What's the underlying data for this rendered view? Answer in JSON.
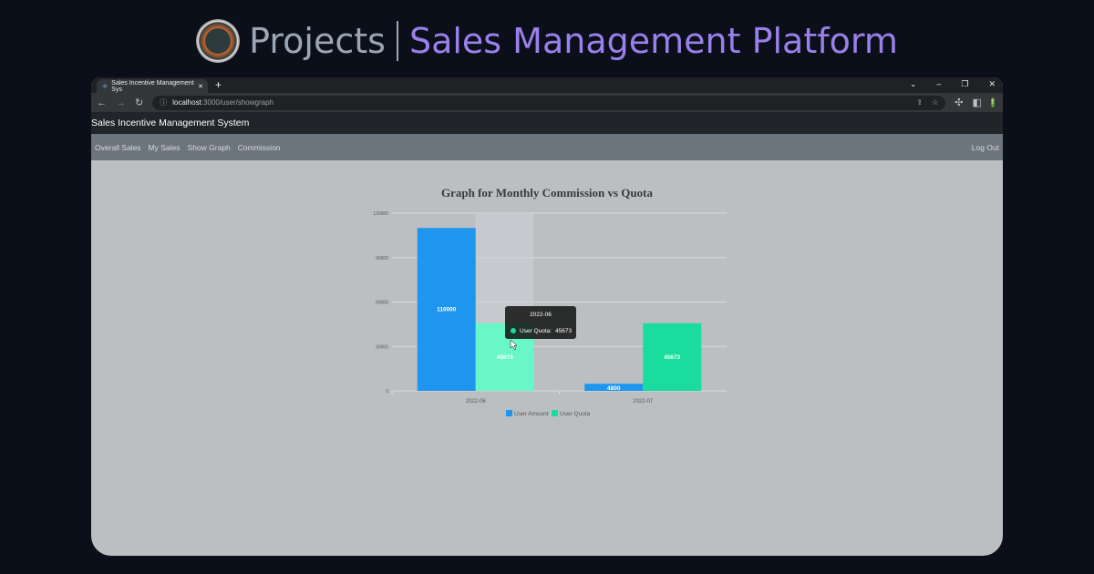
{
  "banner": {
    "logo_text": "G",
    "projects": "Projects",
    "title": "Sales Management Platform"
  },
  "browser": {
    "tab_title": "Sales Incentive Management Sys",
    "url_host": "localhost",
    "url_path": ":3000/user/showgraph",
    "avatar": "T"
  },
  "app": {
    "title": "Sales Incentive Management System",
    "nav": [
      "Overall Sales",
      "My Sales",
      "Show Graph",
      "Commission"
    ],
    "logout": "Log Out"
  },
  "chart_data": {
    "type": "bar",
    "title": "Graph for Monthly Commission vs Quota",
    "categories": [
      "2022-06",
      "2022-07"
    ],
    "ylim": [
      0,
      120000
    ],
    "yticks": [
      0,
      30000,
      60000,
      90000,
      120000
    ],
    "grid": true,
    "legend": "bottom",
    "series": [
      {
        "name": "User Amount",
        "color": "#1e96f0",
        "values": [
          110000,
          4800
        ]
      },
      {
        "name": "User Quota",
        "color": "#1adc9c",
        "values": [
          45673,
          45673
        ]
      }
    ],
    "tooltip": {
      "title": "2022-06",
      "series": "User Quota",
      "value": "45673"
    }
  }
}
